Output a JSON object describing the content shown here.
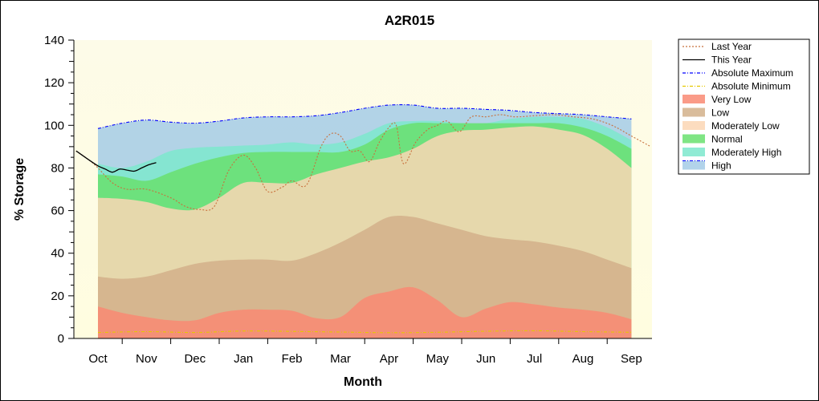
{
  "chart_data": {
    "type": "area",
    "title": "A2R015",
    "xlabel": "Month",
    "ylabel": "% Storage",
    "ylim": [
      0,
      140
    ],
    "yticks": [
      0,
      20,
      40,
      60,
      80,
      100,
      120,
      140
    ],
    "categories": [
      "Oct",
      "Nov",
      "Dec",
      "Jan",
      "Feb",
      "Mar",
      "Apr",
      "May",
      "Jun",
      "Jul",
      "Aug",
      "Sep"
    ],
    "grid": false,
    "legend_position": "right",
    "band_x": [
      0.0,
      0.5,
      1.0,
      1.5,
      2.0,
      2.5,
      3.0,
      3.5,
      4.0,
      4.5,
      5.0,
      5.5,
      6.0,
      6.5,
      7.0,
      7.5,
      8.0,
      8.5,
      9.0,
      9.5,
      10.0,
      10.5,
      11.0
    ],
    "bands": [
      {
        "name": "Very Low",
        "color": "#f98a73",
        "upper": [
          15,
          12,
          10,
          8.5,
          8.5,
          12,
          13.5,
          13.5,
          13,
          9.5,
          10,
          19,
          22,
          24,
          18,
          10,
          14,
          17,
          16,
          14.5,
          13.5,
          12,
          9
        ]
      },
      {
        "name": "Low",
        "color": "#d2b08a",
        "upper": [
          29,
          28,
          29,
          32,
          35,
          36.5,
          37,
          37,
          36.5,
          40,
          45,
          51,
          57,
          57,
          54,
          51,
          48,
          46.5,
          45.5,
          43.5,
          41,
          37,
          33
        ]
      },
      {
        "name": "Moderately Low",
        "color": "#fbd6b4",
        "upper": [
          66,
          65.5,
          64,
          61,
          60.5,
          66,
          73,
          73,
          73,
          77,
          80,
          83,
          85,
          89,
          95,
          97.5,
          98,
          99,
          99.5,
          98,
          95.5,
          89,
          80
        ]
      },
      {
        "name": "Normal",
        "color": "#68e06e",
        "upper": [
          77,
          76,
          74,
          78,
          82,
          85,
          87,
          87.5,
          87.5,
          87.5,
          87.5,
          91,
          98,
          101,
          101,
          101,
          101,
          101,
          101,
          101,
          99,
          95,
          89
        ]
      },
      {
        "name": "Moderately High",
        "color": "#7de8cc",
        "upper": [
          82,
          80,
          83,
          88,
          89.5,
          90,
          90.5,
          91,
          92,
          91,
          92,
          96,
          101,
          102,
          102,
          101,
          101,
          103,
          104,
          104,
          103,
          99,
          93
        ]
      },
      {
        "name": "High",
        "color": "#a4cbe6",
        "upper": [
          98.5,
          101,
          102.5,
          101.5,
          101,
          102,
          103.5,
          104,
          104,
          104.5,
          106,
          108,
          109.5,
          109.5,
          108,
          108,
          107.5,
          107,
          106,
          105.5,
          105,
          104,
          103
        ]
      }
    ],
    "series": [
      {
        "name": "Absolute Maximum",
        "color": "#0000ff",
        "style": "dash-dot",
        "x": [
          0.0,
          0.5,
          1.0,
          1.5,
          2.0,
          2.5,
          3.0,
          3.5,
          4.0,
          4.5,
          5.0,
          5.5,
          6.0,
          6.5,
          7.0,
          7.5,
          8.0,
          8.5,
          9.0,
          9.5,
          10.0,
          10.5,
          11.0
        ],
        "values": [
          98.5,
          101,
          102.5,
          101.5,
          101,
          102,
          103.5,
          104,
          104,
          104.5,
          106,
          108,
          109.5,
          109.5,
          108,
          108,
          107.5,
          107,
          106,
          105.5,
          105,
          104,
          103
        ]
      },
      {
        "name": "Absolute Minimum",
        "color": "#e6c800",
        "style": "dash-dot",
        "x": [
          0.0,
          1.0,
          2.0,
          3.0,
          4.0,
          5.0,
          6.0,
          7.0,
          8.0,
          9.0,
          10.0,
          11.0
        ],
        "values": [
          2.8,
          3.2,
          2.8,
          3.5,
          3.3,
          3.0,
          2.7,
          2.9,
          3.4,
          3.6,
          3.2,
          2.9
        ]
      },
      {
        "name": "Last Year",
        "color": "#c8703c",
        "style": "dotted",
        "x": [
          -0.45,
          -0.2,
          0.0,
          0.3,
          0.6,
          1.0,
          1.5,
          1.8,
          2.1,
          2.4,
          2.7,
          3.0,
          3.25,
          3.5,
          3.8,
          4.0,
          4.3,
          4.6,
          4.8,
          5.0,
          5.2,
          5.4,
          5.6,
          5.8,
          6.0,
          6.15,
          6.3,
          6.55,
          6.8,
          7.0,
          7.2,
          7.45,
          7.7,
          8.0,
          8.3,
          8.6,
          9.0,
          9.4,
          9.8,
          10.2,
          10.6,
          11.0,
          11.4
        ],
        "values": [
          88,
          84,
          80,
          73,
          70,
          70,
          66,
          62,
          60.5,
          62,
          79,
          86,
          80,
          69,
          71,
          74,
          72,
          90,
          96,
          95,
          88,
          88,
          83,
          92,
          99,
          100,
          82,
          92,
          98,
          100,
          102,
          97,
          104,
          104,
          105,
          104,
          104.5,
          105,
          104,
          103,
          100,
          95,
          90
        ]
      },
      {
        "name": "This Year",
        "color": "#000000",
        "style": "solid",
        "x": [
          -0.45,
          -0.2,
          0.0,
          0.15,
          0.3,
          0.45,
          0.6,
          0.75,
          0.9,
          1.05,
          1.2
        ],
        "values": [
          88,
          84,
          81,
          79.5,
          78,
          79.5,
          79,
          78.5,
          80,
          81.5,
          82.5
        ]
      }
    ],
    "legend": [
      "Last Year",
      "This Year",
      "Absolute Maximum",
      "Absolute Minimum",
      "Very Low",
      "Low",
      "Moderately Low",
      "Normal",
      "Moderately High",
      "High"
    ]
  }
}
